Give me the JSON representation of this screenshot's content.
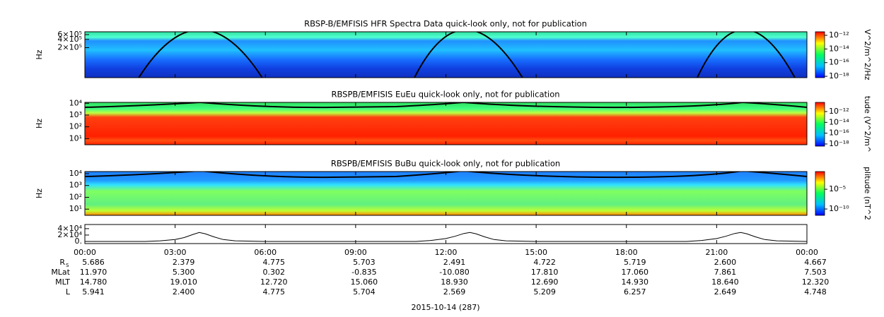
{
  "chart_data": [
    {
      "type": "spectrogram",
      "title": "RBSP-B/EMFISIS  HFR Spectra Data quick-look only, not for publication",
      "ylabel": "Hz",
      "log": true,
      "ylim": [
        16000,
        760000
      ],
      "yticks": [
        {
          "value": 200000,
          "label": "2×10⁵"
        },
        {
          "value": 400000,
          "label": "4×10⁵"
        },
        {
          "value": 600000,
          "label": "6×10⁵"
        }
      ],
      "zlim": [
        6.3e-19,
        3.3e-12
      ],
      "zlabel": "V^2/m^2/Hz",
      "zticks": [
        {
          "value": 1e-12,
          "label": "10⁻¹²"
        },
        {
          "value": 1e-14,
          "label": "10⁻¹⁴"
        },
        {
          "value": 1e-16,
          "label": "10⁻¹⁶"
        },
        {
          "value": 1e-18,
          "label": "10⁻¹⁸"
        }
      ]
    },
    {
      "type": "spectrogram",
      "title": "RBSPB/EMFISIS  EuEu quick-look only, not for publication",
      "ylabel": "Hz",
      "log": true,
      "ylim": [
        3,
        12000
      ],
      "yticks": [
        {
          "value": 10,
          "label": "10¹"
        },
        {
          "value": 100,
          "label": "10²"
        },
        {
          "value": 1000,
          "label": "10³"
        },
        {
          "value": 10000,
          "label": "10⁴"
        }
      ],
      "zlim": [
        4e-19,
        5e-11
      ],
      "zlabel": "tude (V^2/m^",
      "zticks": [
        {
          "value": 1e-12,
          "label": "10⁻¹²"
        },
        {
          "value": 1e-14,
          "label": "10⁻¹⁴"
        },
        {
          "value": 1e-16,
          "label": "10⁻¹⁶"
        },
        {
          "value": 1e-18,
          "label": "10⁻¹⁸"
        }
      ]
    },
    {
      "type": "spectrogram",
      "title": "RBSPB/EMFISIS  BuBu quick-look only, not for publication",
      "ylabel": "Hz",
      "log": true,
      "ylim": [
        3,
        15000
      ],
      "yticks": [
        {
          "value": 10,
          "label": "10¹"
        },
        {
          "value": 100,
          "label": "10²"
        },
        {
          "value": 1000,
          "label": "10³"
        },
        {
          "value": 10000,
          "label": "10⁴"
        }
      ],
      "zlim": [
        2.5e-12,
        0.3
      ],
      "zlabel": "plitude (nT^2",
      "zticks": [
        {
          "value": 1e-05,
          "label": "10⁻⁵"
        },
        {
          "value": 1e-10,
          "label": "10⁻¹⁰"
        }
      ]
    },
    {
      "type": "line",
      "color": "#000000",
      "ylim": [
        -6700,
        53000
      ],
      "yticks": [
        {
          "value": 0,
          "label": "0."
        },
        {
          "value": 20000,
          "label": "2×10⁴"
        },
        {
          "value": 40000,
          "label": "4×10⁴"
        }
      ],
      "x": [
        0,
        1,
        2,
        2.5,
        3,
        3.3,
        3.6,
        3.8,
        4,
        4.3,
        4.6,
        5,
        6,
        8,
        10,
        11,
        11.5,
        12,
        12.3,
        12.6,
        12.8,
        13,
        13.3,
        13.6,
        14,
        15,
        17,
        19,
        20,
        20.5,
        21,
        21.3,
        21.6,
        21.8,
        22,
        22.3,
        22.6,
        23,
        24
      ],
      "values": [
        0,
        0,
        0,
        2000,
        6000,
        12000,
        22000,
        28000,
        24000,
        14000,
        6000,
        2000,
        0,
        0,
        0,
        0,
        3000,
        9000,
        16000,
        25000,
        28000,
        24000,
        14000,
        6000,
        2000,
        0,
        0,
        0,
        0,
        3000,
        9000,
        16000,
        25000,
        28000,
        24000,
        14000,
        6000,
        2000,
        0
      ],
      "xlim": [
        0,
        24
      ],
      "xticks": [
        {
          "value": 0,
          "label": "00:00"
        },
        {
          "value": 3,
          "label": "03:00"
        },
        {
          "value": 6,
          "label": "06:00"
        },
        {
          "value": 9,
          "label": "09:00"
        },
        {
          "value": 12,
          "label": "12:00"
        },
        {
          "value": 15,
          "label": "15:00"
        },
        {
          "value": 18,
          "label": "18:00"
        },
        {
          "value": 21,
          "label": "21:00"
        },
        {
          "value": 24,
          "label": "00:00"
        }
      ],
      "xlabel": "2015-10-14 (287)"
    }
  ],
  "ephemeris": [
    {
      "label": "R",
      "sub": "S",
      "values": [
        "5.686",
        "2.379",
        "4.775",
        "5.703",
        "2.491",
        "4.722",
        "5.719",
        "2.600",
        "4.667"
      ]
    },
    {
      "label": "MLat",
      "values": [
        "11.970",
        "5.300",
        "0.302",
        "-0.835",
        "-10.080",
        "17.810",
        "17.060",
        "7.861",
        "7.503"
      ]
    },
    {
      "label": "MLT",
      "values": [
        "14.780",
        "19.010",
        "12.720",
        "15.060",
        "18.930",
        "12.690",
        "14.930",
        "18.640",
        "12.320"
      ]
    },
    {
      "label": "L",
      "values": [
        "5.941",
        "2.400",
        "4.775",
        "5.704",
        "2.569",
        "5.209",
        "6.257",
        "2.649",
        "4.748"
      ]
    }
  ]
}
